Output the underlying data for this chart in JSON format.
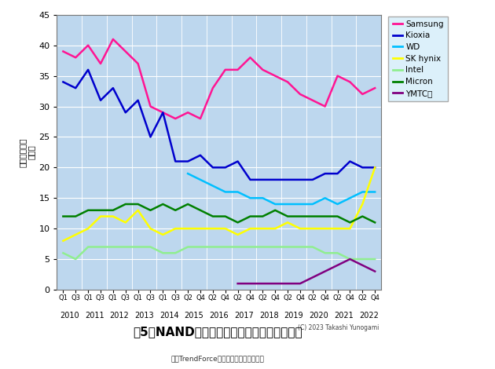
{
  "title": "図5　NANDフラッシュメモリの企業別シェア",
  "subtitle": "出所TrendForceのデータを基に筆者作成",
  "copyright": "(C) 2023 Takashi Yunogami",
  "ylabel": "売上高シェア（％）",
  "ylim": [
    0,
    45
  ],
  "yticks": [
    0,
    5,
    10,
    15,
    20,
    25,
    30,
    35,
    40,
    45
  ],
  "background_color": "#BDD7EE",
  "fig_background": "#FFFFFF",
  "legend_labels": [
    "Samsung",
    "Kioxia",
    "WD",
    "SK hynix",
    "Intel",
    "Micron",
    "YMTC等"
  ],
  "line_colors": [
    "#FF1493",
    "#0000CD",
    "#00BFFF",
    "#FFFF00",
    "#90EE90",
    "#008000",
    "#800080"
  ],
  "q_labels": [
    "Q1",
    "Q3",
    "Q1",
    "Q3",
    "Q1",
    "Q3",
    "Q1",
    "Q3",
    "Q1",
    "Q3",
    "Q2",
    "Q4",
    "Q2",
    "Q4",
    "Q2",
    "Q4",
    "Q2",
    "Q4",
    "Q2",
    "Q4",
    "Q2",
    "Q4",
    "Q2",
    "Q4",
    "Q2",
    "Q4"
  ],
  "year_labels": [
    "2010",
    "2011",
    "2012",
    "2013",
    "2014",
    "2015",
    "2016",
    "2017",
    "2018",
    "2019",
    "2020",
    "2021",
    "2022"
  ],
  "year_centers": [
    0.5,
    2.5,
    4.5,
    6.5,
    8.5,
    10.5,
    12.5,
    14.5,
    16.5,
    18.5,
    20.5,
    22.5,
    24.5
  ],
  "year_seps": [
    1.5,
    3.5,
    5.5,
    7.5,
    9.5,
    11.5,
    13.5,
    15.5,
    17.5,
    19.5,
    21.5,
    23.5
  ],
  "Samsung": [
    39,
    38,
    40,
    37,
    41,
    39,
    37,
    30,
    29,
    28,
    29,
    28,
    33,
    36,
    36,
    38,
    36,
    35,
    34,
    32,
    31,
    30,
    35,
    34,
    32,
    33
  ],
  "Kioxia": [
    34,
    33,
    36,
    31,
    33,
    29,
    31,
    25,
    29,
    21,
    21,
    22,
    20,
    20,
    21,
    18,
    18,
    18,
    18,
    18,
    18,
    19,
    19,
    21,
    20,
    20
  ],
  "WD": [
    null,
    null,
    null,
    null,
    null,
    null,
    null,
    null,
    null,
    null,
    19,
    18,
    17,
    16,
    16,
    15,
    15,
    14,
    14,
    14,
    14,
    15,
    14,
    15,
    16,
    16
  ],
  "SK_hynix": [
    8,
    9,
    10,
    12,
    12,
    11,
    13,
    10,
    9,
    10,
    10,
    10,
    10,
    10,
    9,
    10,
    10,
    10,
    11,
    10,
    10,
    10,
    10,
    10,
    14,
    20
  ],
  "Intel": [
    6,
    5,
    7,
    7,
    7,
    7,
    7,
    7,
    6,
    6,
    7,
    7,
    7,
    7,
    7,
    7,
    7,
    7,
    7,
    7,
    7,
    6,
    6,
    5,
    5,
    5
  ],
  "Micron": [
    12,
    12,
    13,
    13,
    13,
    14,
    14,
    13,
    14,
    13,
    14,
    13,
    12,
    12,
    11,
    12,
    12,
    13,
    12,
    12,
    12,
    12,
    12,
    11,
    12,
    11
  ],
  "YMTC": [
    null,
    null,
    null,
    null,
    null,
    null,
    null,
    null,
    null,
    null,
    null,
    null,
    null,
    null,
    1,
    1,
    1,
    1,
    1,
    1,
    2,
    3,
    4,
    5,
    4,
    3
  ]
}
